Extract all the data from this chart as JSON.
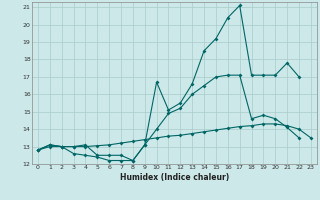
{
  "xlabel": "Humidex (Indice chaleur)",
  "background_color": "#cce8e8",
  "grid_color": "#aacccc",
  "line_color": "#006666",
  "xlim": [
    -0.5,
    23.5
  ],
  "ylim": [
    12,
    21.3
  ],
  "xticks": [
    0,
    1,
    2,
    3,
    4,
    5,
    6,
    7,
    8,
    9,
    10,
    11,
    12,
    13,
    14,
    15,
    16,
    17,
    18,
    19,
    20,
    21,
    22,
    23
  ],
  "yticks": [
    12,
    13,
    14,
    15,
    16,
    17,
    18,
    19,
    20,
    21
  ],
  "line1_x": [
    0,
    1,
    2,
    3,
    4,
    5,
    6,
    7,
    8,
    9,
    10,
    11,
    12,
    13,
    14,
    15,
    16,
    17,
    18,
    19,
    20,
    21,
    22
  ],
  "line1_y": [
    12.8,
    13.1,
    13.0,
    12.6,
    12.5,
    12.4,
    12.2,
    12.2,
    12.2,
    13.1,
    16.7,
    15.1,
    15.5,
    16.6,
    18.5,
    19.2,
    20.4,
    21.1,
    17.1,
    17.1,
    17.1,
    17.8,
    17.0
  ],
  "line2_x": [
    0,
    1,
    2,
    3,
    4,
    5,
    6,
    7,
    8,
    9,
    10,
    11,
    12,
    13,
    14,
    15,
    16,
    17,
    18,
    19,
    20,
    21,
    22
  ],
  "line2_y": [
    12.8,
    13.1,
    13.0,
    13.0,
    13.1,
    12.5,
    12.5,
    12.5,
    12.2,
    13.1,
    14.0,
    14.9,
    15.2,
    16.0,
    16.5,
    17.0,
    17.1,
    17.1,
    14.6,
    14.8,
    14.6,
    14.1,
    13.5
  ],
  "line3_x": [
    0,
    1,
    2,
    3,
    4,
    5,
    6,
    7,
    8,
    9,
    10,
    11,
    12,
    13,
    14,
    15,
    16,
    17,
    18,
    19,
    20,
    21,
    22,
    23
  ],
  "line3_y": [
    12.8,
    13.0,
    13.0,
    13.0,
    13.0,
    13.05,
    13.1,
    13.2,
    13.3,
    13.4,
    13.5,
    13.6,
    13.65,
    13.75,
    13.85,
    13.95,
    14.05,
    14.15,
    14.2,
    14.3,
    14.3,
    14.2,
    14.0,
    13.5
  ]
}
